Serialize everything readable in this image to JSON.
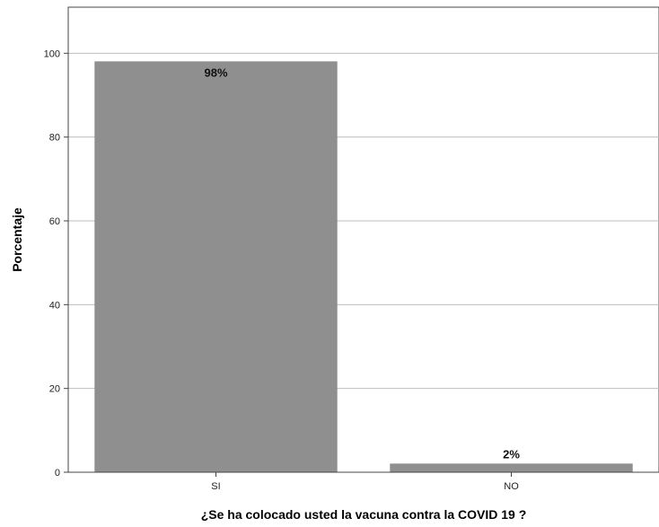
{
  "chart_data": {
    "type": "bar",
    "categories": [
      "SI",
      "NO"
    ],
    "values": [
      98,
      2
    ],
    "data_labels": [
      "98%",
      "2%"
    ],
    "title": "",
    "xlabel": "¿Se ha colocado usted la vacuna contra la COVID 19 ?",
    "ylabel": "Porcentaje",
    "ylim": [
      0,
      111
    ],
    "yticks": [
      0,
      20,
      40,
      60,
      80,
      100
    ],
    "grid": true,
    "legend": "none",
    "bar_color": "#8f8f8f"
  }
}
